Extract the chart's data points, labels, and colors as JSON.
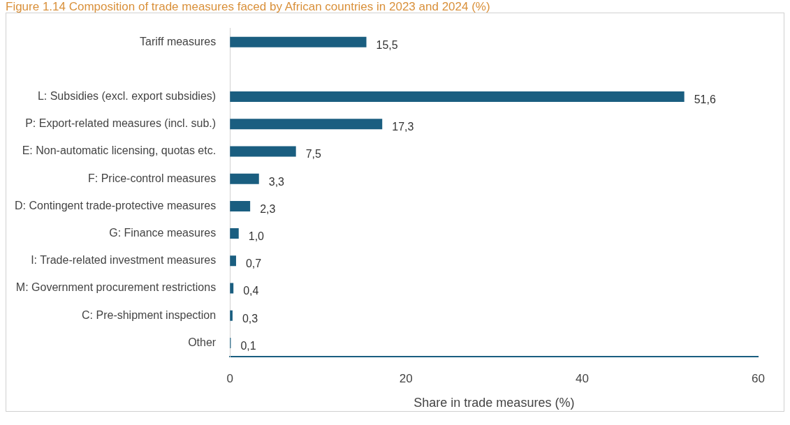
{
  "chart_data": {
    "type": "bar",
    "orientation": "horizontal",
    "title": "Figure 1.14 Composition of trade measures faced by African countries in 2023 and 2024 (%)",
    "xlabel": "Share in trade measures (%)",
    "categories": [
      "Tariff measures",
      null,
      "L: Subsidies (excl. export subsidies)",
      "P: Export-related measures (incl. sub.)",
      "E: Non-automatic licensing, quotas etc.",
      "F: Price-control measures",
      "D: Contingent trade-protective measures",
      "G: Finance measures",
      "I: Trade-related investment measures",
      "M: Government procurement restrictions",
      "C: Pre-shipment inspection",
      "Other"
    ],
    "values": [
      15.5,
      null,
      51.6,
      17.3,
      7.5,
      3.3,
      2.3,
      1.0,
      0.7,
      0.4,
      0.3,
      0.1
    ],
    "value_labels": [
      "15,5",
      null,
      "51,6",
      "17,3",
      "7,5",
      "3,3",
      "2,3",
      "1,0",
      "0,7",
      "0,4",
      "0,3",
      "0,1"
    ],
    "color": "#1a5e80",
    "xlim": [
      0,
      60
    ],
    "xticks": [
      0,
      20,
      40,
      60
    ],
    "grid": false,
    "legend": false
  }
}
